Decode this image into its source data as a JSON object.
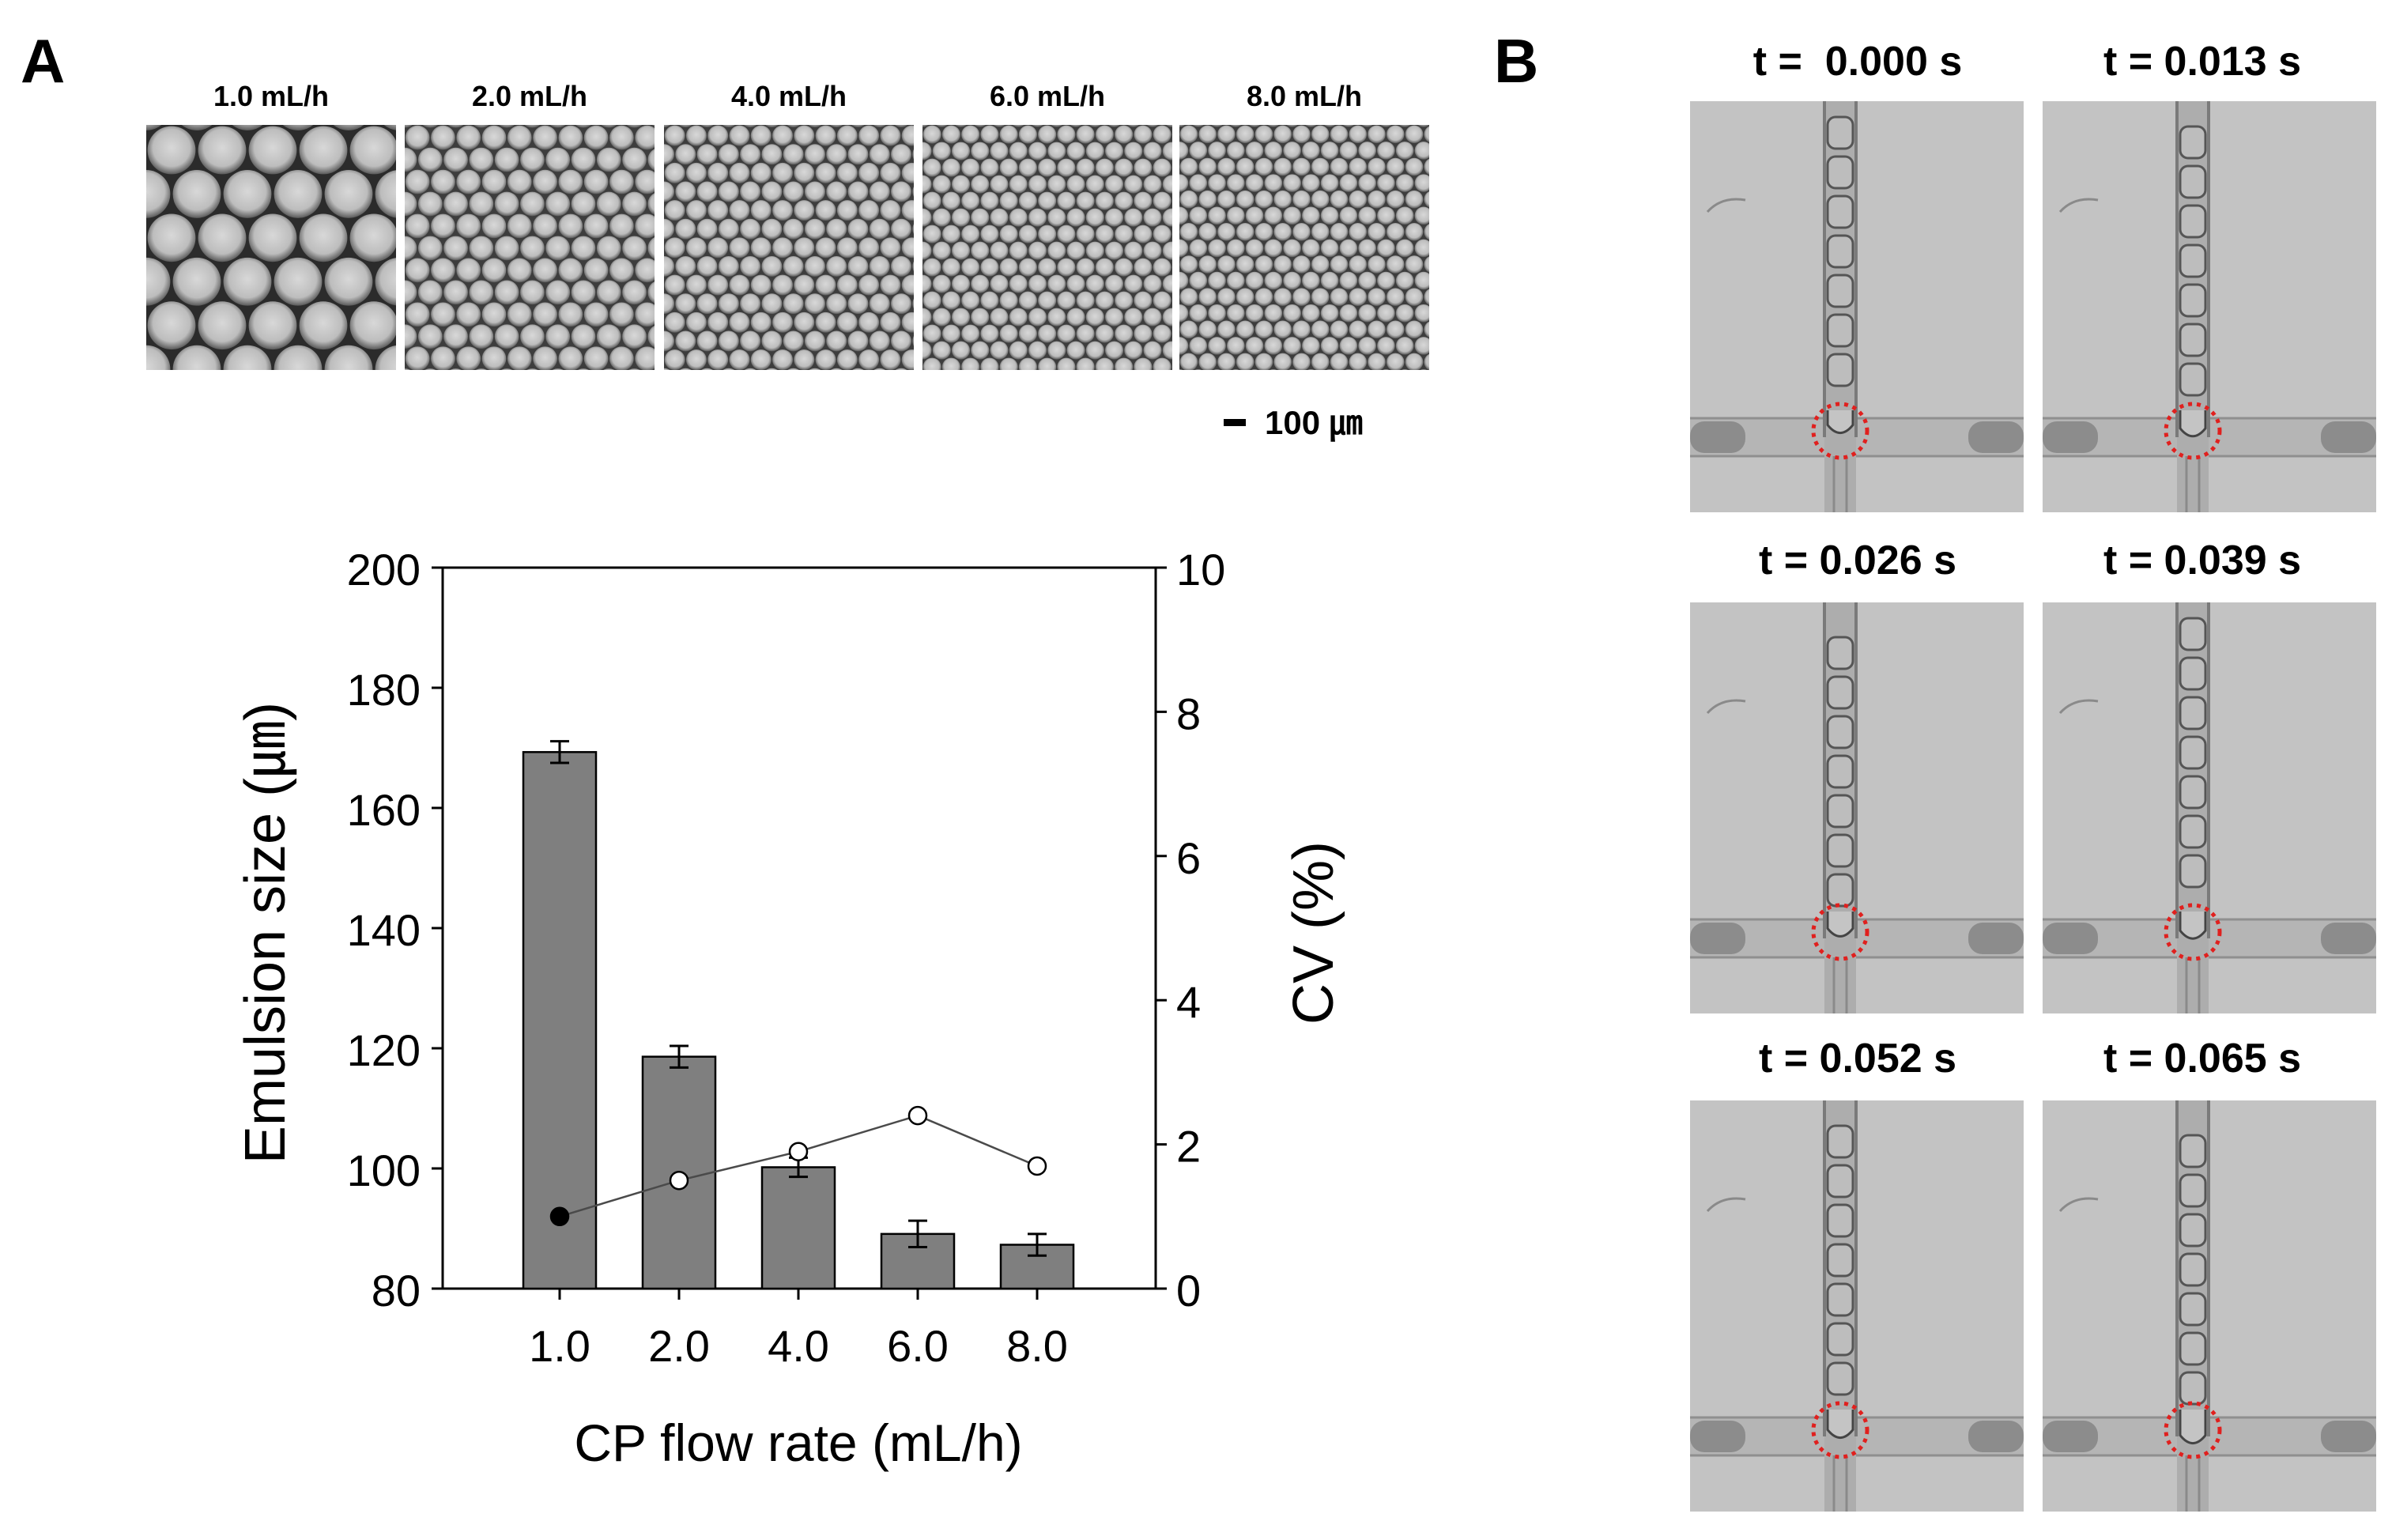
{
  "panels": {
    "a_label": "A",
    "b_label": "B"
  },
  "micrographs": [
    {
      "label": "1.0 mL/h",
      "droplet_um": 169.3
    },
    {
      "label": "2.0 mL/h",
      "droplet_um": 118.6
    },
    {
      "label": "4.0 mL/h",
      "droplet_um": 100.2
    },
    {
      "label": "6.0 mL/h",
      "droplet_um": 89.1
    },
    {
      "label": "8.0 mL/h",
      "droplet_um": 87.3
    }
  ],
  "scale_bar": {
    "label": "100 ㎛"
  },
  "chart_data": {
    "type": "bar",
    "title": "",
    "categories": [
      "1.0",
      "2.0",
      "4.0",
      "6.0",
      "8.0"
    ],
    "xlabel": "CP flow rate (mL/h)",
    "ylabel": "Emulsion size (㎛)",
    "ylabel2": "CV (%)",
    "ylim": [
      80,
      200
    ],
    "ylim2": [
      0,
      10
    ],
    "yticks": [
      80,
      100,
      120,
      140,
      160,
      180,
      200
    ],
    "yticks2": [
      0,
      2,
      4,
      6,
      8,
      10
    ],
    "grid": false,
    "series": [
      {
        "name": "Emulsion size",
        "axis": "left",
        "kind": "bar",
        "values": [
          169.3,
          118.6,
          100.2,
          89.1,
          87.3
        ],
        "errors": [
          1.8,
          1.8,
          1.6,
          2.2,
          1.8
        ],
        "color": "#7f7f7f"
      },
      {
        "name": "CV",
        "axis": "right",
        "kind": "line",
        "values": [
          1.0,
          1.5,
          1.9,
          2.4,
          1.7
        ],
        "color": "#4a4a4a"
      }
    ]
  },
  "time_frames": [
    {
      "label": "t =  0.000 s",
      "tip_offset": 0.45
    },
    {
      "label": "t = 0.013 s",
      "tip_offset": 0.6
    },
    {
      "label": "t = 0.026 s",
      "tip_offset": 0.55
    },
    {
      "label": "t = 0.039 s",
      "tip_offset": 0.65
    },
    {
      "label": "t = 0.052 s",
      "tip_offset": 0.7
    },
    {
      "label": "t = 0.065 s",
      "tip_offset": 0.95
    }
  ],
  "colors": {
    "bar": "#7f7f7f",
    "highlight_circle": "#e0201e",
    "frame_background": "#c3c3c3",
    "micrograph_background": "#2b2b2b"
  }
}
